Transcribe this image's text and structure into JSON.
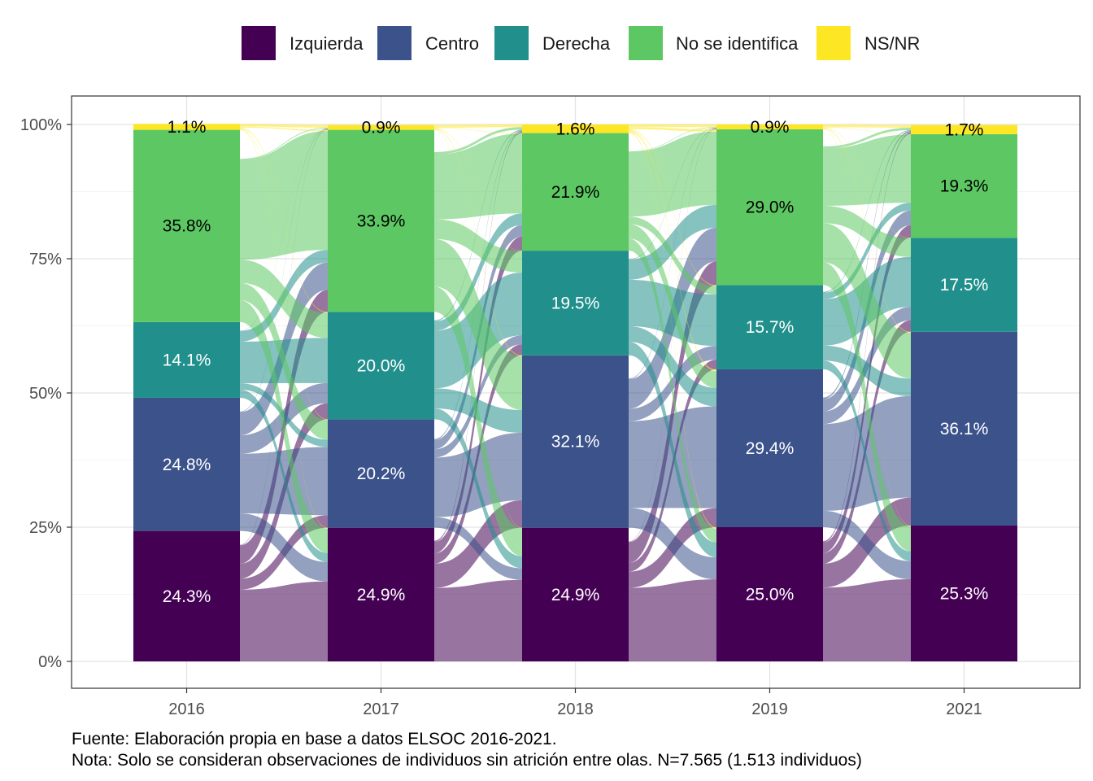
{
  "chart_data": {
    "type": "alluvial",
    "legend_position": "top",
    "categories": [
      "2016",
      "2017",
      "2018",
      "2019",
      "2021"
    ],
    "series": [
      {
        "name": "Izquierda",
        "color": "#440154",
        "values": [
          24.3,
          24.9,
          24.9,
          25.0,
          25.3
        ]
      },
      {
        "name": "Centro",
        "color": "#3b528b",
        "values": [
          24.8,
          20.2,
          32.1,
          29.4,
          36.1
        ]
      },
      {
        "name": "Derecha",
        "color": "#21908c",
        "values": [
          14.1,
          20.0,
          19.5,
          15.7,
          17.5
        ]
      },
      {
        "name": "No se identifica",
        "color": "#5dc863",
        "values": [
          35.8,
          33.9,
          21.9,
          29.0,
          19.3
        ]
      },
      {
        "name": "NS/NR",
        "color": "#fde725",
        "values": [
          1.1,
          0.9,
          1.6,
          0.9,
          1.7
        ]
      }
    ],
    "data_labels": [
      [
        "24.3%",
        "24.8%",
        "14.1%",
        "35.8%",
        "1.1%"
      ],
      [
        "24.9%",
        "20.2%",
        "20.0%",
        "33.9%",
        "0.9%"
      ],
      [
        "24.9%",
        "32.1%",
        "19.5%",
        "21.9%",
        "1.6%"
      ],
      [
        "25.0%",
        "29.4%",
        "15.7%",
        "29.0%",
        "0.9%"
      ],
      [
        "25.3%",
        "36.1%",
        "17.5%",
        "19.3%",
        "1.7%"
      ]
    ],
    "y_ticks": [
      "0%",
      "25%",
      "50%",
      "75%",
      "100%"
    ],
    "ylim": [
      0,
      100
    ],
    "grid": true
  },
  "caption": {
    "line1": "Fuente: Elaboración propia en base a datos ELSOC 2016-2021.",
    "line2": "Nota: Solo se consideran observaciones de individuos sin atrición entre olas. N=7.565 (1.513 individuos)"
  }
}
